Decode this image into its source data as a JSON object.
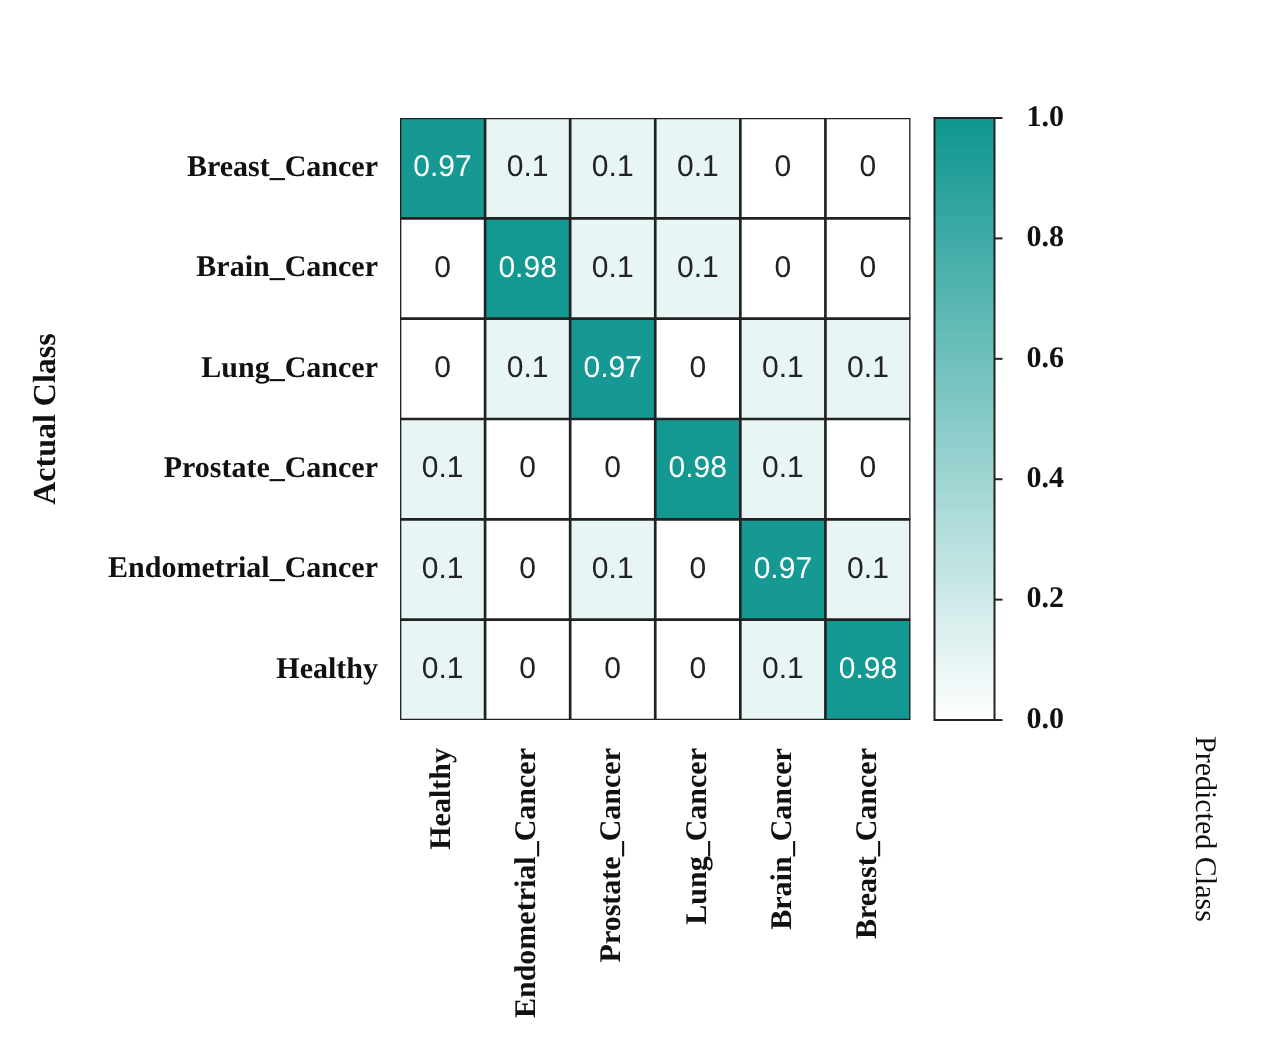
{
  "chart_data": {
    "type": "heatmap",
    "annotations": [
      "Predicted Class"
    ],
    "ylabel": "Actual Class",
    "categories": [
      "Healthy",
      "Endometrial_Cancer",
      "Prostate_Cancer",
      "Lung_Cancer",
      "Brain_Cancer",
      "Breast_Cancer"
    ],
    "y_categories": [
      "Breast_Cancer",
      "Brain_Cancer",
      "Lung_Cancer",
      "Prostate_Cancer",
      "Endometrial_Cancer",
      "Healthy"
    ],
    "cells": [
      [
        0.97,
        0.1,
        0.1,
        0.1,
        0,
        0
      ],
      [
        0,
        0.98,
        0.1,
        0.1,
        0,
        0
      ],
      [
        0,
        0.1,
        0.97,
        0,
        0.1,
        0.1
      ],
      [
        0.1,
        0,
        0,
        0.98,
        0.1,
        0
      ],
      [
        0.1,
        0,
        0.1,
        0,
        0.97,
        0.1
      ],
      [
        0.1,
        0,
        0,
        0,
        0.1,
        0.98
      ]
    ],
    "clim": [
      0,
      1
    ],
    "cticks": [
      {
        "value": 0,
        "label": "0.0"
      },
      {
        "value": 0.2,
        "label": "0.2"
      },
      {
        "value": 0.4,
        "label": "0.4"
      },
      {
        "value": 0.6,
        "label": "0.6"
      },
      {
        "value": 0.8,
        "label": "0.8"
      },
      {
        "value": 1,
        "label": "1.0"
      }
    ],
    "data_labels": true
  }
}
